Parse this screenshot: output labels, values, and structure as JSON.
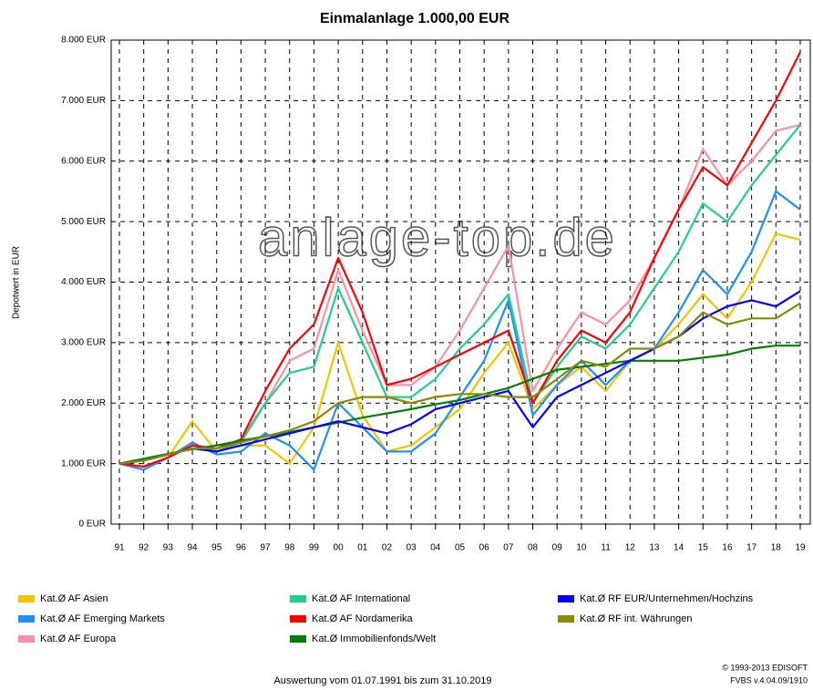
{
  "chart_data": {
    "type": "line",
    "title": "Einmalanlage 1.000,00 EUR",
    "y_label": "Depotwert in EUR",
    "annotation": "anlage-top.de",
    "footer": "Auswertung vom 01.07.1991 bis zum 31.10.2019",
    "copyright": [
      "© 1993-2013 EDISOFT",
      "FVBS v.4.04.09/1910"
    ],
    "grid": true,
    "categories": [
      "91",
      "92",
      "93",
      "94",
      "95",
      "96",
      "97",
      "98",
      "99",
      "00",
      "01",
      "02",
      "03",
      "04",
      "05",
      "06",
      "07",
      "08",
      "09",
      "10",
      "11",
      "12",
      "13",
      "14",
      "15",
      "16",
      "17",
      "18",
      "19"
    ],
    "ylim": [
      0,
      8000
    ],
    "yticks": [
      {
        "value": 0,
        "label": "0 EUR"
      },
      {
        "value": 1000,
        "label": "1.000 EUR"
      },
      {
        "value": 2000,
        "label": "2.000 EUR"
      },
      {
        "value": 3000,
        "label": "3.000 EUR"
      },
      {
        "value": 4000,
        "label": "4.000 EUR"
      },
      {
        "value": 5000,
        "label": "5.000 EUR"
      },
      {
        "value": 6000,
        "label": "6.000 EUR"
      },
      {
        "value": 7000,
        "label": "7.000 EUR"
      },
      {
        "value": 8000,
        "label": "8.000 EUR"
      }
    ],
    "series": [
      {
        "name": "Kat.Ø AF Asien",
        "color": "#f5c400",
        "values": [
          1000,
          950,
          1100,
          1700,
          1200,
          1300,
          1300,
          1000,
          1600,
          3000,
          1800,
          1200,
          1300,
          1600,
          1900,
          2500,
          3000,
          1900,
          2300,
          2600,
          2200,
          2700,
          2900,
          3300,
          3800,
          3400,
          4000,
          4800,
          4700
        ]
      },
      {
        "name": "Kat.Ø AF Emerging Markets",
        "color": "#1e90ff",
        "values": [
          1000,
          900,
          1100,
          1350,
          1150,
          1200,
          1500,
          1300,
          900,
          2000,
          1600,
          1200,
          1200,
          1500,
          2100,
          2700,
          3700,
          1800,
          2300,
          2700,
          2300,
          2700,
          2900,
          3500,
          4200,
          3800,
          4500,
          5500,
          5200
        ]
      },
      {
        "name": "Kat.Ø AF Europa",
        "color": "#ff8fa0",
        "values": [
          1000,
          950,
          1100,
          1300,
          1250,
          1400,
          2000,
          2700,
          2900,
          4200,
          3200,
          2300,
          2300,
          2600,
          3200,
          3900,
          4600,
          2200,
          2900,
          3500,
          3300,
          3700,
          4400,
          5200,
          6200,
          5600,
          6000,
          6500,
          6600
        ]
      },
      {
        "name": "Kat.Ø AF International",
        "color": "#20d090",
        "values": [
          1000,
          950,
          1100,
          1300,
          1200,
          1350,
          2000,
          2500,
          2600,
          3900,
          3000,
          2100,
          2100,
          2400,
          2900,
          3300,
          3800,
          2000,
          2600,
          3100,
          2900,
          3300,
          3900,
          4500,
          5300,
          5000,
          5600,
          6100,
          6600
        ]
      },
      {
        "name": "Kat.Ø AF Nordamerika",
        "color": "#ff0000",
        "values": [
          1000,
          950,
          1100,
          1300,
          1250,
          1400,
          2200,
          2900,
          3300,
          4400,
          3500,
          2300,
          2400,
          2600,
          2800,
          3000,
          3200,
          2000,
          2700,
          3200,
          3000,
          3500,
          4400,
          5200,
          5900,
          5600,
          6300,
          7000,
          7800
        ]
      },
      {
        "name": "Kat.Ø Immobilienfonds/Welt",
        "color": "#008000",
        "values": [
          1000,
          1080,
          1160,
          1240,
          1300,
          1380,
          1450,
          1520,
          1600,
          1680,
          1760,
          1830,
          1900,
          1980,
          2050,
          2150,
          2250,
          2400,
          2550,
          2600,
          2650,
          2700,
          2700,
          2700,
          2750,
          2800,
          2900,
          2950,
          2950
        ]
      },
      {
        "name": "Kat.Ø RF EUR/Unternehmen/Hochzins",
        "color": "#0000ff",
        "values": [
          1000,
          1050,
          1150,
          1250,
          1200,
          1300,
          1400,
          1500,
          1600,
          1700,
          1600,
          1500,
          1650,
          1900,
          2000,
          2100,
          2200,
          1600,
          2100,
          2300,
          2500,
          2700,
          2900,
          3100,
          3400,
          3600,
          3700,
          3600,
          3850
        ]
      },
      {
        "name": "Kat.Ø RF int. Währungen",
        "color": "#8a8a00",
        "values": [
          1000,
          1050,
          1150,
          1250,
          1250,
          1350,
          1450,
          1550,
          1700,
          2000,
          2100,
          2100,
          2000,
          2100,
          2150,
          2150,
          2100,
          2100,
          2400,
          2700,
          2600,
          2900,
          2900,
          3100,
          3500,
          3300,
          3400,
          3400,
          3650
        ]
      }
    ]
  }
}
